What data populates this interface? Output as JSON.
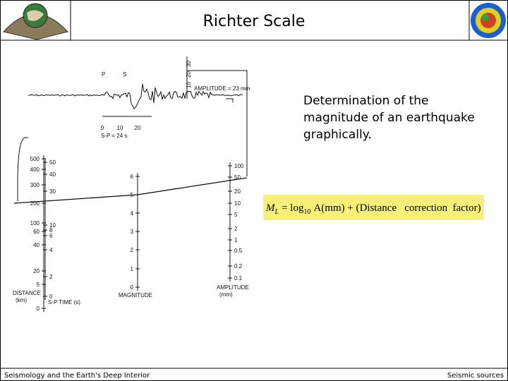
{
  "header": {
    "title": "Richter Scale"
  },
  "body": {
    "text_lines": [
      "Determination of the",
      "magnitude of an earthquake",
      "graphically."
    ]
  },
  "formula": {
    "lhs": "M",
    "lhs_sub": "L",
    "op": "= log",
    "op_sub": "10",
    "rhs": "A(mm) + (Distance   correction  factor)"
  },
  "figure": {
    "seismogram": {
      "p_label": "P",
      "s_label": "S",
      "time_ticks": [
        "0",
        "10",
        "20"
      ],
      "sp_label": "S-P = 24 s",
      "amp_ticks": [
        "10",
        "20",
        "30"
      ],
      "amp_label": "AMPLITUDE = 23 mm"
    },
    "distance": {
      "title": "DISTANCE",
      "unit": "(km)",
      "labels": [
        "500",
        "400",
        "300",
        "200",
        "100",
        "60",
        "40",
        "20",
        "5",
        "0"
      ]
    },
    "sp_time": {
      "title": "S-P TIME (s)",
      "labels": [
        "50",
        "40",
        "30",
        "10",
        "8",
        "6",
        "4",
        "2",
        "0"
      ]
    },
    "magnitude": {
      "title": "MAGNITUDE",
      "labels": [
        "6",
        "5",
        "4",
        "3",
        "2",
        "1",
        "0"
      ]
    },
    "amplitude": {
      "title": "AMPLITUDE",
      "unit": "(mm)",
      "labels": [
        "100",
        "50",
        "20",
        "10",
        "5",
        "2",
        "1",
        "0.5",
        "0.2",
        "0.1"
      ]
    }
  },
  "footer": {
    "left": "Seismology and the Earth's Deep Interior",
    "right": "Seismic sources"
  }
}
